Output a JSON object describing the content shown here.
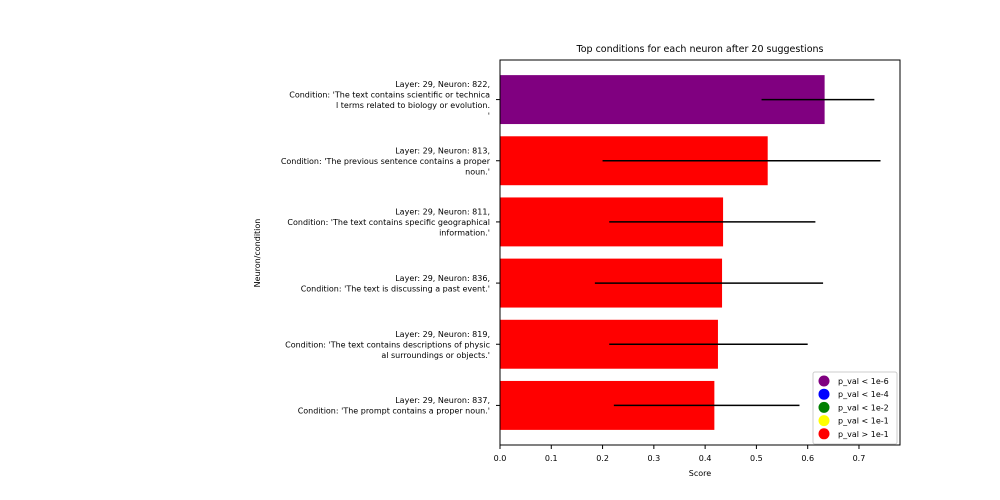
{
  "chart_data": {
    "type": "bar",
    "orientation": "horizontal",
    "title": "Top conditions for each neuron after 20 suggestions",
    "xlabel": "Score",
    "ylabel": "Neuron/condition",
    "xlim": [
      0,
      0.78
    ],
    "xticks": [
      "0.0",
      "0.1",
      "0.2",
      "0.3",
      "0.4",
      "0.5",
      "0.6",
      "0.7"
    ],
    "grid": false,
    "legend_position": "bottom-right",
    "categories": [
      [
        "Layer: 29, Neuron: 822,",
        "Condition: 'The text contains scientific or technica",
        "l terms related to biology or evolution.",
        "'"
      ],
      [
        "Layer: 29, Neuron: 813,",
        "Condition: 'The previous sentence contains a proper",
        "noun.'"
      ],
      [
        "Layer: 29, Neuron: 811,",
        "Condition: 'The text contains specific geographical",
        "information.'"
      ],
      [
        "Layer: 29, Neuron: 836,",
        "Condition: 'The text is discussing a past event.'"
      ],
      [
        "Layer: 29, Neuron: 819,",
        "Condition: 'The text contains descriptions of physic",
        "al surroundings or objects.'"
      ],
      [
        "Layer: 29, Neuron: 837,",
        "Condition: 'The prompt contains a proper noun.'"
      ]
    ],
    "values": [
      0.633,
      0.522,
      0.435,
      0.433,
      0.425,
      0.418
    ],
    "error_low": [
      0.51,
      0.2,
      0.213,
      0.185,
      0.213,
      0.222
    ],
    "error_high": [
      0.73,
      0.742,
      0.615,
      0.63,
      0.6,
      0.584
    ],
    "bar_colors": [
      "#800080",
      "#ff0000",
      "#ff0000",
      "#ff0000",
      "#ff0000",
      "#ff0000"
    ],
    "legend": [
      {
        "label": "p_val < 1e-6",
        "color": "#800080"
      },
      {
        "label": "p_val < 1e-4",
        "color": "#0000ff"
      },
      {
        "label": "p_val < 1e-2",
        "color": "#008000"
      },
      {
        "label": "p_val < 1e-1",
        "color": "#ffff00"
      },
      {
        "label": "p_val > 1e-1",
        "color": "#ff0000"
      }
    ]
  }
}
